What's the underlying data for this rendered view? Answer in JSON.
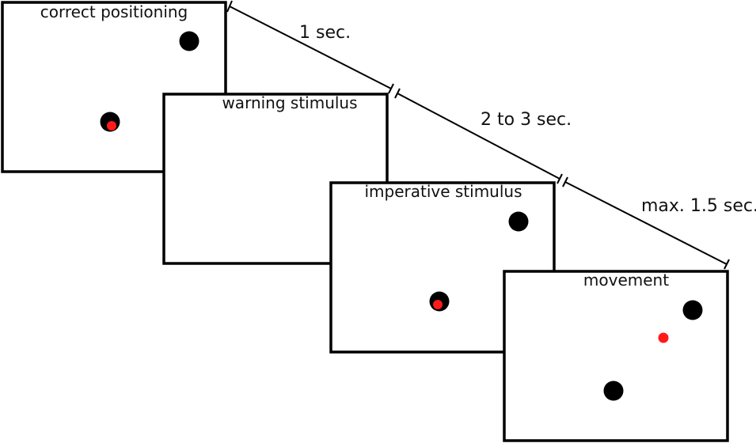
{
  "frames": [
    {
      "label": "correct positioning"
    },
    {
      "label": "warning stimulus"
    },
    {
      "label": "imperative stimulus"
    },
    {
      "label": "movement"
    }
  ],
  "durations": [
    {
      "label": "1 sec."
    },
    {
      "label": "2 to 3 sec."
    },
    {
      "label": "max. 1.5 sec."
    }
  ],
  "colors": {
    "frame_border": "#000000",
    "target_dot": "#000000",
    "cursor_dot": "#ff1a1a",
    "timeline": "#000000"
  }
}
